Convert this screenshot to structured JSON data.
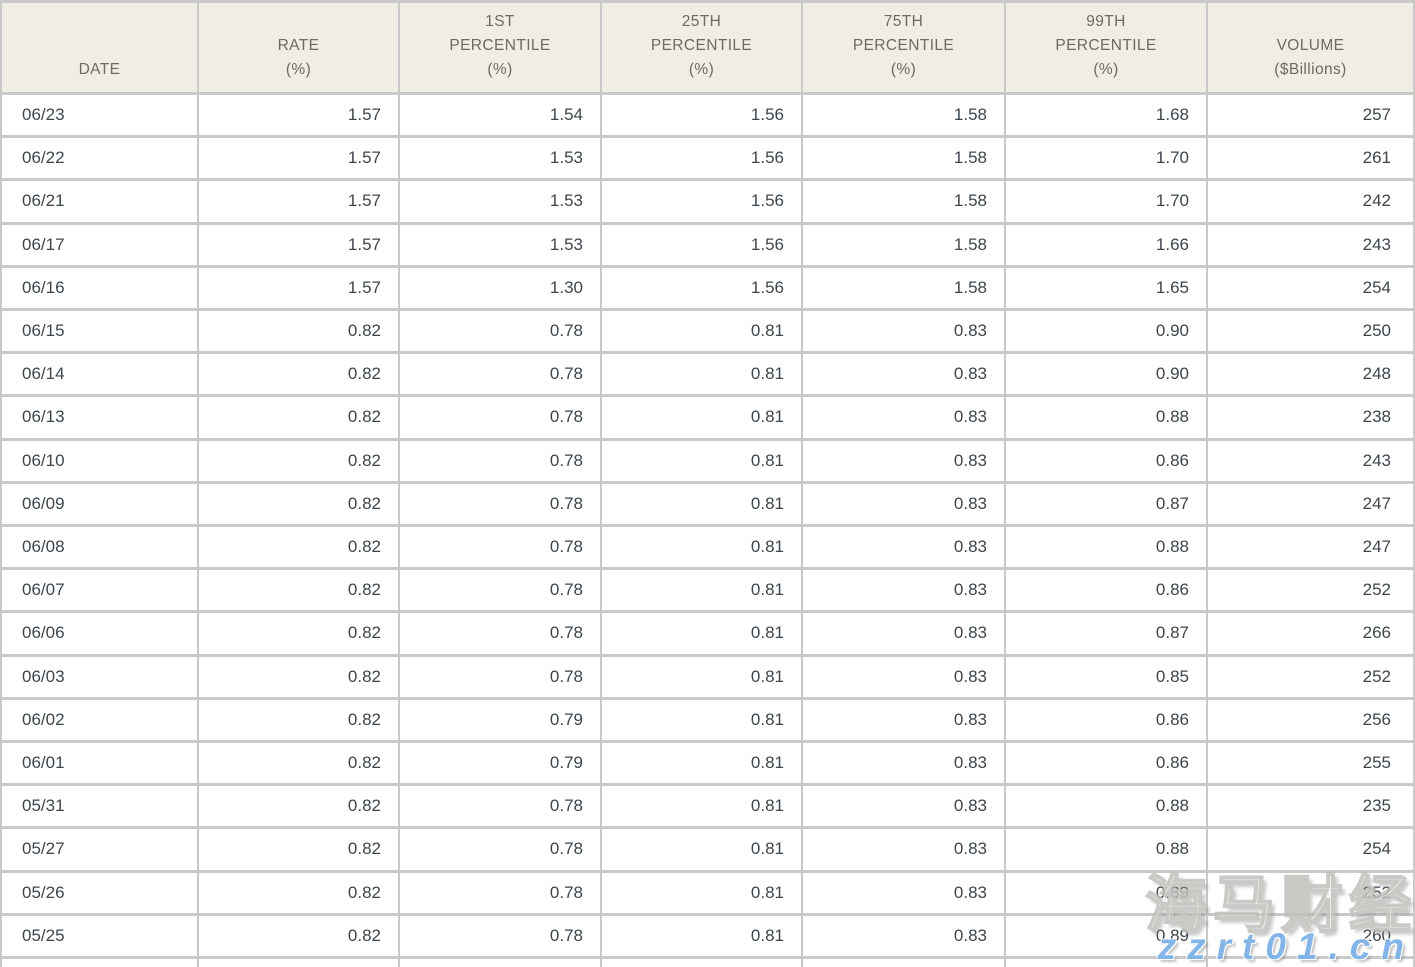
{
  "colors": {
    "header_bg": "#f0ede7",
    "header_text": "#6e6a63",
    "body_text": "#3d464d",
    "row_bg": "#ffffff",
    "border": "#c9c9c9",
    "watermark_brand": "#f4f3f1",
    "watermark_url": "#7db2e8"
  },
  "table": {
    "columns": [
      {
        "key": "date",
        "lines": [
          "DATE"
        ],
        "align": "left"
      },
      {
        "key": "rate",
        "lines": [
          "RATE",
          "(%)"
        ],
        "align": "right"
      },
      {
        "key": "p01",
        "lines": [
          "1ST",
          "PERCENTILE",
          "(%)"
        ],
        "align": "right"
      },
      {
        "key": "p25",
        "lines": [
          "25TH",
          "PERCENTILE",
          "(%)"
        ],
        "align": "right"
      },
      {
        "key": "p75",
        "lines": [
          "75TH",
          "PERCENTILE",
          "(%)"
        ],
        "align": "right"
      },
      {
        "key": "p99",
        "lines": [
          "99TH",
          "PERCENTILE",
          "(%)"
        ],
        "align": "right"
      },
      {
        "key": "volume",
        "lines": [
          "VOLUME",
          "($Billions)"
        ],
        "align": "right"
      }
    ]
  },
  "chart_data": {
    "type": "table",
    "columns": [
      "DATE",
      "RATE (%)",
      "1ST PERCENTILE (%)",
      "25TH PERCENTILE (%)",
      "75TH PERCENTILE (%)",
      "99TH PERCENTILE (%)",
      "VOLUME ($Billions)"
    ],
    "rows": [
      [
        "06/23",
        "1.57",
        "1.54",
        "1.56",
        "1.58",
        "1.68",
        "257"
      ],
      [
        "06/22",
        "1.57",
        "1.53",
        "1.56",
        "1.58",
        "1.70",
        "261"
      ],
      [
        "06/21",
        "1.57",
        "1.53",
        "1.56",
        "1.58",
        "1.70",
        "242"
      ],
      [
        "06/17",
        "1.57",
        "1.53",
        "1.56",
        "1.58",
        "1.66",
        "243"
      ],
      [
        "06/16",
        "1.57",
        "1.30",
        "1.56",
        "1.58",
        "1.65",
        "254"
      ],
      [
        "06/15",
        "0.82",
        "0.78",
        "0.81",
        "0.83",
        "0.90",
        "250"
      ],
      [
        "06/14",
        "0.82",
        "0.78",
        "0.81",
        "0.83",
        "0.90",
        "248"
      ],
      [
        "06/13",
        "0.82",
        "0.78",
        "0.81",
        "0.83",
        "0.88",
        "238"
      ],
      [
        "06/10",
        "0.82",
        "0.78",
        "0.81",
        "0.83",
        "0.86",
        "243"
      ],
      [
        "06/09",
        "0.82",
        "0.78",
        "0.81",
        "0.83",
        "0.87",
        "247"
      ],
      [
        "06/08",
        "0.82",
        "0.78",
        "0.81",
        "0.83",
        "0.88",
        "247"
      ],
      [
        "06/07",
        "0.82",
        "0.78",
        "0.81",
        "0.83",
        "0.86",
        "252"
      ],
      [
        "06/06",
        "0.82",
        "0.78",
        "0.81",
        "0.83",
        "0.87",
        "266"
      ],
      [
        "06/03",
        "0.82",
        "0.78",
        "0.81",
        "0.83",
        "0.85",
        "252"
      ],
      [
        "06/02",
        "0.82",
        "0.79",
        "0.81",
        "0.83",
        "0.86",
        "256"
      ],
      [
        "06/01",
        "0.82",
        "0.79",
        "0.81",
        "0.83",
        "0.86",
        "255"
      ],
      [
        "05/31",
        "0.82",
        "0.78",
        "0.81",
        "0.83",
        "0.88",
        "235"
      ],
      [
        "05/27",
        "0.82",
        "0.78",
        "0.81",
        "0.83",
        "0.88",
        "254"
      ],
      [
        "05/26",
        "0.82",
        "0.78",
        "0.81",
        "0.83",
        "0.89",
        "252"
      ],
      [
        "05/25",
        "0.82",
        "0.78",
        "0.81",
        "0.83",
        "0.89",
        "260"
      ]
    ]
  },
  "watermark": {
    "brand": "海马财经",
    "url": "zzrt01.cn"
  }
}
